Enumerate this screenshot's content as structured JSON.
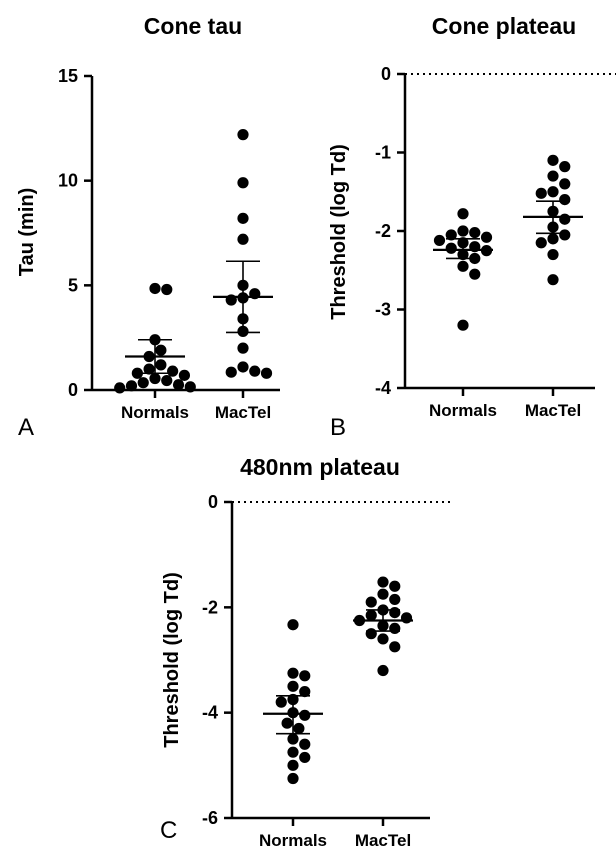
{
  "chart_data": [
    {
      "type": "scatter",
      "panel_label": "A",
      "title": "Cone tau",
      "ylabel": "Tau (min)",
      "categories": [
        "Normals",
        "MacTel"
      ],
      "ylim": [
        0,
        15
      ],
      "yticks": [
        0,
        5,
        10,
        15
      ],
      "ytick_labels": [
        "0",
        "5",
        "10",
        "15"
      ],
      "reference_line": null,
      "series": [
        {
          "category": "Normals",
          "values": [
            0.1,
            0.15,
            0.2,
            0.25,
            0.35,
            0.45,
            0.55,
            0.7,
            0.8,
            0.9,
            1.0,
            1.2,
            1.6,
            1.9,
            2.4,
            4.8,
            4.85
          ],
          "mean": 1.6,
          "ci": [
            0.8,
            2.4
          ]
        },
        {
          "category": "MacTel",
          "values": [
            0.8,
            0.85,
            0.9,
            1.1,
            2.0,
            2.8,
            3.4,
            4.3,
            4.4,
            4.6,
            5.0,
            7.2,
            8.2,
            9.9,
            12.2
          ],
          "mean": 4.45,
          "ci": [
            2.75,
            6.15
          ]
        }
      ]
    },
    {
      "type": "scatter",
      "panel_label": "B",
      "title": "Cone plateau",
      "ylabel": "Threshold (log Td)",
      "categories": [
        "Normals",
        "MacTel"
      ],
      "ylim": [
        -4,
        0
      ],
      "yticks": [
        -4,
        -3,
        -2,
        -1,
        0
      ],
      "ytick_labels": [
        "-4",
        "-3",
        "-2",
        "-1",
        "0"
      ],
      "reference_line": 0,
      "series": [
        {
          "category": "Normals",
          "values": [
            -1.78,
            -2.0,
            -2.02,
            -2.05,
            -2.08,
            -2.12,
            -2.15,
            -2.2,
            -2.22,
            -2.25,
            -2.3,
            -2.35,
            -2.45,
            -2.55,
            -3.2
          ],
          "mean": -2.24,
          "ci": [
            -2.35,
            -2.1
          ]
        },
        {
          "category": "MacTel",
          "values": [
            -1.1,
            -1.18,
            -1.3,
            -1.4,
            -1.5,
            -1.52,
            -1.6,
            -1.75,
            -1.85,
            -1.95,
            -2.05,
            -2.1,
            -2.15,
            -2.3,
            -2.62
          ],
          "mean": -1.82,
          "ci": [
            -2.03,
            -1.62
          ]
        }
      ]
    },
    {
      "type": "scatter",
      "panel_label": "C",
      "title": "480nm plateau",
      "ylabel": "Threshold (log Td)",
      "categories": [
        "Normals",
        "MacTel"
      ],
      "ylim": [
        -6,
        0
      ],
      "yticks": [
        -6,
        -4,
        -2,
        0
      ],
      "ytick_labels": [
        "-6",
        "-4",
        "-2",
        "0"
      ],
      "reference_line": 0,
      "series": [
        {
          "category": "Normals",
          "values": [
            -2.33,
            -3.25,
            -3.3,
            -3.5,
            -3.6,
            -3.75,
            -3.8,
            -4.0,
            -4.05,
            -4.2,
            -4.3,
            -4.5,
            -4.6,
            -4.75,
            -4.85,
            -5.0,
            -5.25
          ],
          "mean": -4.02,
          "ci": [
            -4.4,
            -3.68
          ]
        },
        {
          "category": "MacTel",
          "values": [
            -1.52,
            -1.6,
            -1.75,
            -1.85,
            -1.9,
            -2.05,
            -2.1,
            -2.15,
            -2.2,
            -2.25,
            -2.35,
            -2.4,
            -2.5,
            -2.6,
            -2.75,
            -3.2
          ],
          "mean": -2.25,
          "ci": [
            -2.45,
            -2.05
          ]
        }
      ]
    }
  ]
}
